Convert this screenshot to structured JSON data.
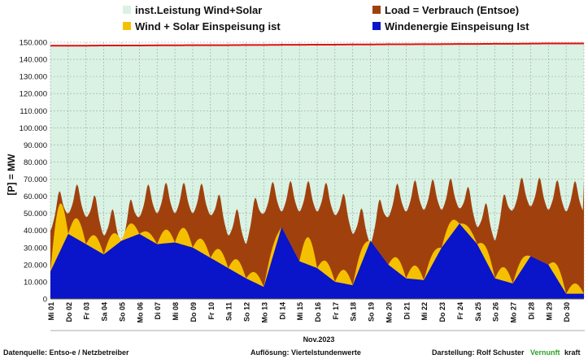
{
  "chart_data": {
    "type": "area",
    "title": "",
    "xlabel": "Nov.2023",
    "ylabel": "[P] = MW",
    "ylim": [
      0,
      150000
    ],
    "y_ticks": [
      0,
      10000,
      20000,
      30000,
      40000,
      50000,
      60000,
      70000,
      80000,
      90000,
      100000,
      110000,
      120000,
      130000,
      140000,
      150000
    ],
    "y_tick_labels": [
      "0",
      "10.000",
      "20.000",
      "30.000",
      "40.000",
      "50.000",
      "60.000",
      "70.000",
      "80.000",
      "90.000",
      "100.000",
      "110.000",
      "120.000",
      "130.000",
      "140.000",
      "150.000"
    ],
    "x_tick_labels": [
      "Mi 01",
      "Do 02",
      "Fr 03",
      "Sa 04",
      "So 05",
      "Mo 06",
      "Di 07",
      "Mi 08",
      "Do 09",
      "Fr 10",
      "Sa 11",
      "So 12",
      "Mo 13",
      "Di 14",
      "Mi 15",
      "Do 16",
      "Fr 17",
      "Sa 18",
      "So 19",
      "Mo 20",
      "Di 21",
      "Mi 22",
      "Do 23",
      "Fr 24",
      "Sa 25",
      "So 26",
      "Mo 27",
      "Di 28",
      "Mi 29",
      "Do 30"
    ],
    "grid": true,
    "legend_position": "top",
    "legend": [
      {
        "label": "inst.Leistung Wind+Solar",
        "color": "#d9f2e3"
      },
      {
        "label": "Load =  Verbrauch (Entsoe)",
        "color": "#a0410d"
      },
      {
        "label": "Wind + Solar Einspeisung ist",
        "color": "#f5c000"
      },
      {
        "label": "Windenergie Einspeisung Ist",
        "color": "#0a14c8"
      }
    ],
    "colors": {
      "installed": "#d9f2e3",
      "installed_line": "#e01010",
      "load": "#a0410d",
      "wind_solar": "#f5c000",
      "wind": "#0a14c8"
    },
    "series": [
      {
        "name": "inst.Leistung Wind+Solar",
        "values": [
          148000,
          148000,
          148000,
          148100,
          148100,
          148100,
          148200,
          148200,
          148300,
          148300,
          148300,
          148400,
          148400,
          148500,
          148500,
          148600,
          148600,
          148700,
          148700,
          148800,
          148800,
          148900,
          148900,
          149000,
          149000,
          149100,
          149100,
          149200,
          149300,
          149300
        ]
      },
      {
        "name": "Load =  Verbrauch (Entsoe)",
        "values": [
          58000,
          68000,
          66000,
          55000,
          50000,
          66000,
          68000,
          68000,
          68000,
          67000,
          55000,
          50000,
          68000,
          69000,
          69000,
          69000,
          67000,
          56000,
          50000,
          66000,
          69000,
          70000,
          70000,
          71000,
          60000,
          52000,
          70000,
          72000,
          70000,
          69000
        ]
      },
      {
        "name": "Wind + Solar Einspeisung ist",
        "values": [
          30000,
          44000,
          36000,
          30000,
          38000,
          40000,
          36000,
          38000,
          34000,
          28000,
          22000,
          15000,
          10000,
          40000,
          30000,
          22000,
          14000,
          12000,
          32000,
          24000,
          16000,
          14000,
          34000,
          46000,
          36000,
          16000,
          12000,
          24000,
          24000,
          6000
        ]
      },
      {
        "name": "Windenergie Einspeisung Ist",
        "values": [
          16000,
          38000,
          32000,
          26000,
          34000,
          38000,
          32000,
          33000,
          30000,
          24000,
          18000,
          12000,
          7000,
          42000,
          22000,
          18000,
          10000,
          8000,
          34000,
          20000,
          12000,
          11000,
          30000,
          44000,
          32000,
          12000,
          9000,
          25000,
          20000,
          3000
        ]
      }
    ]
  },
  "footer": {
    "source": "Datenquelle:  Entso-e  / Netzbetreiber",
    "resolution": "Auflösung: Viertelstundenwerte",
    "author": "Darstellung:  Rolf Schuster",
    "brand_green": "Vernunft",
    "brand_black": "kraft"
  }
}
